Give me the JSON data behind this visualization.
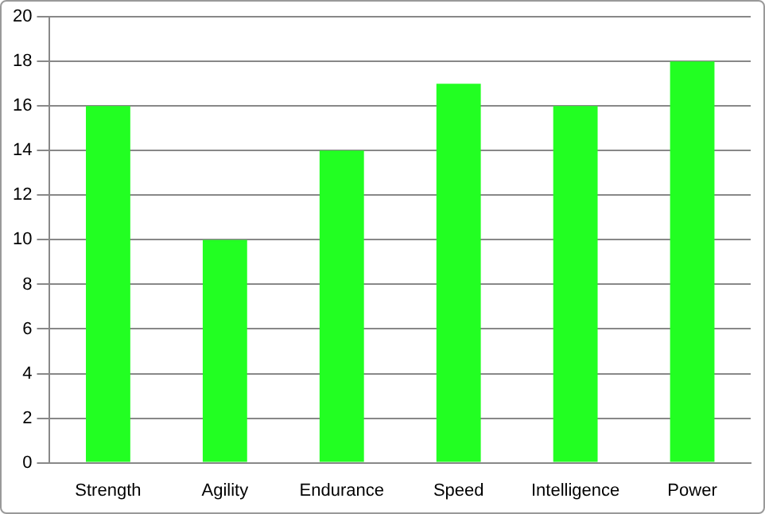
{
  "chart_data": {
    "type": "bar",
    "categories": [
      "Strength",
      "Agility",
      "Endurance",
      "Speed",
      "Intelligence",
      "Power"
    ],
    "values": [
      16,
      10,
      14,
      17,
      16,
      18
    ],
    "color": "#22ff22",
    "ylim": [
      0,
      20
    ],
    "yticks": [
      0,
      2,
      4,
      6,
      8,
      10,
      12,
      14,
      16,
      18,
      20
    ],
    "grid": "y"
  }
}
